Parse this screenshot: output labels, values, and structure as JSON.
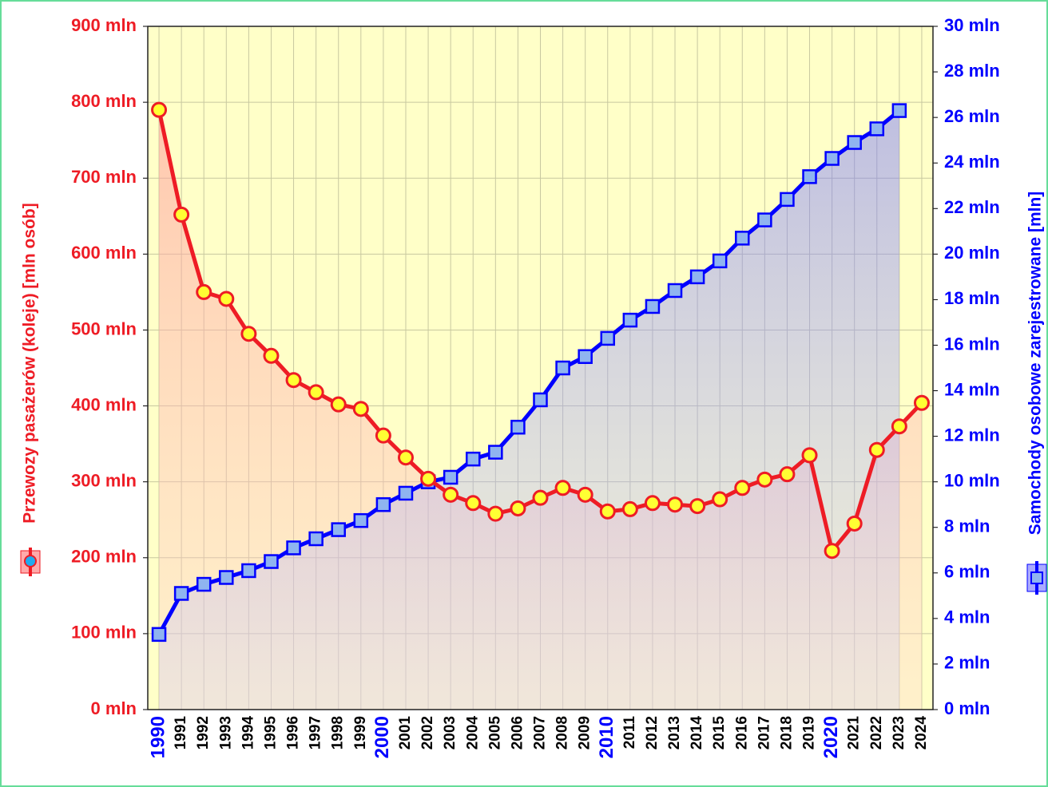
{
  "chart_data": {
    "type": "line",
    "categories": [
      "1990",
      "1991",
      "1992",
      "1993",
      "1994",
      "1995",
      "1996",
      "1997",
      "1998",
      "1999",
      "2000",
      "2001",
      "2002",
      "2003",
      "2004",
      "2005",
      "2006",
      "2007",
      "2008",
      "2009",
      "2010",
      "2011",
      "2012",
      "2013",
      "2014",
      "2015",
      "2016",
      "2017",
      "2018",
      "2019",
      "2020",
      "2021",
      "2022",
      "2023",
      "2024"
    ],
    "y_label": "Przewozy pasażerów (koleje) [mln osób]",
    "y2_label": "Samochody osobowe zarejestrowane [mln]",
    "ylim": [
      0,
      900
    ],
    "yticks": [
      {
        "value": 0,
        "label": "0 mln"
      },
      {
        "value": 100,
        "label": "100 mln"
      },
      {
        "value": 200,
        "label": "200 mln"
      },
      {
        "value": 300,
        "label": "300 mln"
      },
      {
        "value": 400,
        "label": "400 mln"
      },
      {
        "value": 500,
        "label": "500 mln"
      },
      {
        "value": 600,
        "label": "600 mln"
      },
      {
        "value": 700,
        "label": "700 mln"
      },
      {
        "value": 800,
        "label": "800 mln"
      },
      {
        "value": 900,
        "label": "900 mln"
      }
    ],
    "y2lim": [
      0,
      30
    ],
    "y2ticks": [
      {
        "value": 0,
        "label": "0 mln"
      },
      {
        "value": 2,
        "label": "2 mln"
      },
      {
        "value": 4,
        "label": "4 mln"
      },
      {
        "value": 6,
        "label": "6 mln"
      },
      {
        "value": 8,
        "label": "8 mln"
      },
      {
        "value": 10,
        "label": "10 mln"
      },
      {
        "value": 12,
        "label": "12 mln"
      },
      {
        "value": 14,
        "label": "14 mln"
      },
      {
        "value": 16,
        "label": "16 mln"
      },
      {
        "value": 18,
        "label": "18 mln"
      },
      {
        "value": 20,
        "label": "20 mln"
      },
      {
        "value": 22,
        "label": "22 mln"
      },
      {
        "value": 24,
        "label": "24 mln"
      },
      {
        "value": 26,
        "label": "26 mln"
      },
      {
        "value": 28,
        "label": "28 mln"
      },
      {
        "value": 30,
        "label": "30 mln"
      }
    ],
    "grid": true,
    "series": [
      {
        "color": "#ee1c25",
        "marker_color": "#ffff33",
        "values": [
          790,
          652,
          550,
          541,
          495,
          466,
          434,
          418,
          402,
          396,
          361,
          332,
          304,
          283,
          272,
          258,
          265,
          279,
          292,
          283,
          261,
          264,
          272,
          270,
          268,
          277,
          292,
          303,
          310,
          335,
          209,
          245,
          342,
          373,
          404
        ]
      },
      {
        "color": "#0000ff",
        "marker_color": "#8fb4f0",
        "axis": "y2",
        "values": [
          3.3,
          5.1,
          5.5,
          5.8,
          6.1,
          6.5,
          7.1,
          7.5,
          7.9,
          8.3,
          9.0,
          9.5,
          10.0,
          10.2,
          11.0,
          11.3,
          12.4,
          13.6,
          15.0,
          15.5,
          16.3,
          17.1,
          17.7,
          18.4,
          19.0,
          19.7,
          20.7,
          21.5,
          22.4,
          23.4,
          24.2,
          24.9,
          25.5,
          26.3,
          null
        ]
      }
    ]
  }
}
